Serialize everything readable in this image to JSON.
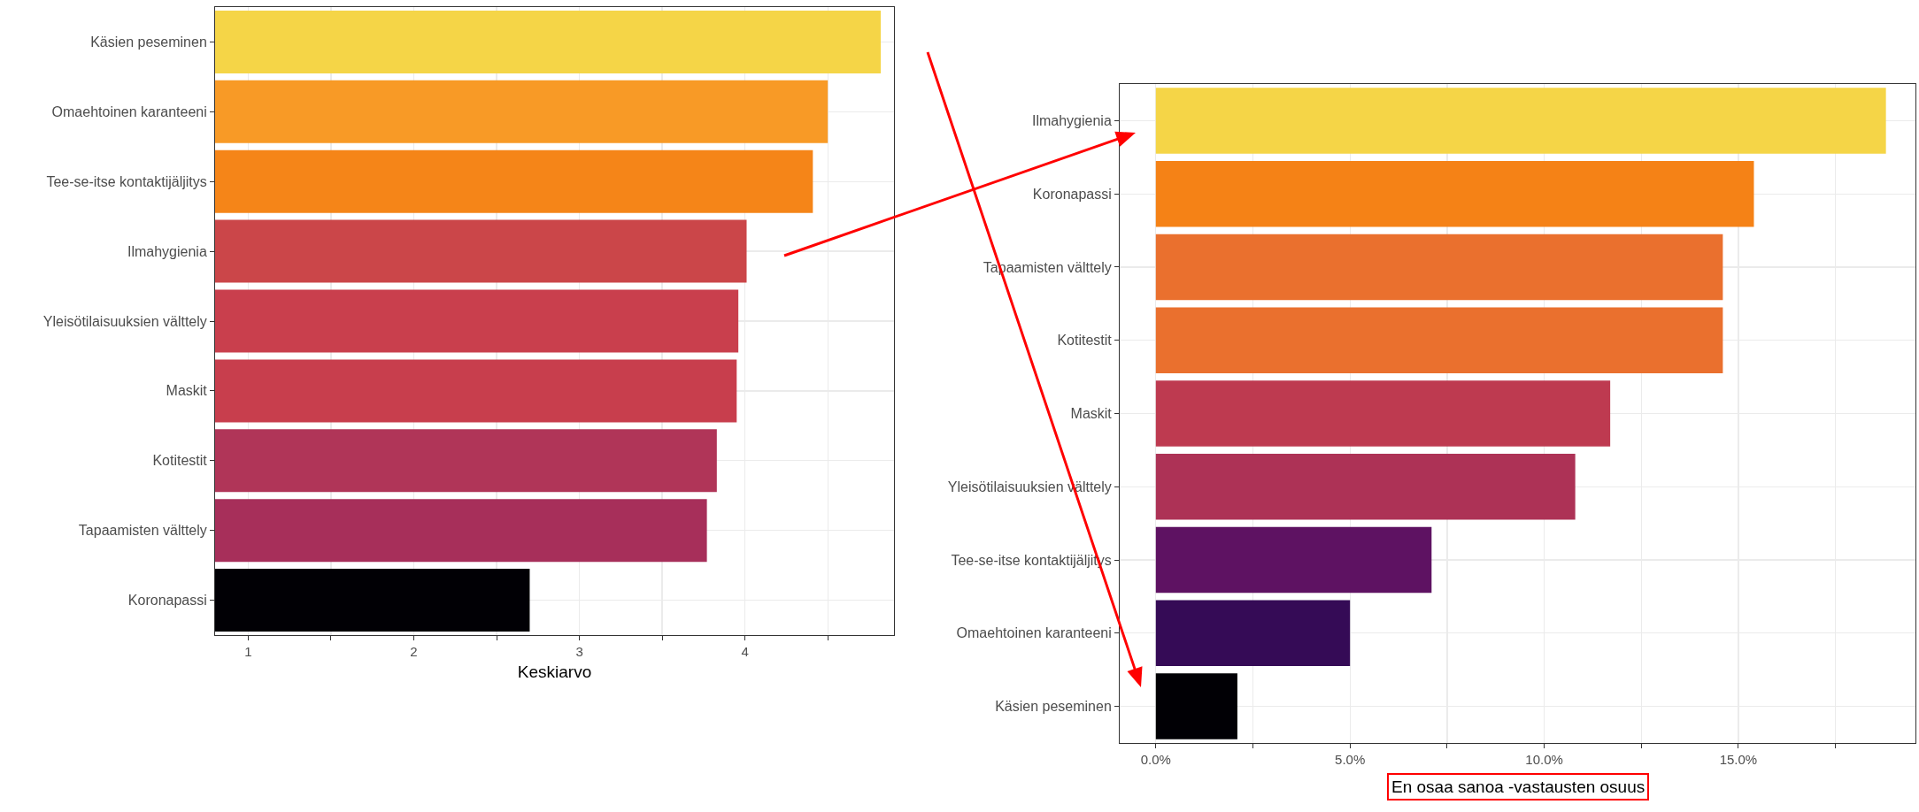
{
  "chart_data": [
    {
      "type": "bar",
      "orientation": "horizontal",
      "xlabel": "Keskiarvo",
      "categories": [
        "Käsien peseminen",
        "Omaehtoinen karanteeni",
        "Tee-se-itse kontaktijäljitys",
        "Ilmahygienia",
        "Yleisötilaisuuksien välttely",
        "Maskit",
        "Kotitestit",
        "Tapaamisten välttely",
        "Koronapassi"
      ],
      "values": [
        4.82,
        4.5,
        4.41,
        4.01,
        3.96,
        3.95,
        3.83,
        3.77,
        2.7
      ],
      "colors": [
        "#f5d547",
        "#f89a26",
        "#f58518",
        "#cb4649",
        "#c93f4d",
        "#c83e4d",
        "#b03558",
        "#a72f5a",
        "#010005"
      ],
      "xlim": [
        0.8,
        4.9
      ],
      "xticks": [
        1,
        {
          "value": 1.5,
          "label": null
        },
        2,
        {
          "value": 2.5,
          "label": null
        },
        3,
        {
          "value": 3.5,
          "label": null
        },
        4,
        {
          "value": 4.5,
          "label": null
        }
      ],
      "grid": true
    },
    {
      "type": "bar",
      "orientation": "horizontal",
      "xlabel": "En osaa sanoa -vastausten osuus",
      "categories": [
        "Ilmahygienia",
        "Koronapassi",
        "Tapaamisten välttely",
        "Kotitestit",
        "Maskit",
        "Yleisötilaisuuksien välttely",
        "Tee-se-itse kontaktijäljitys",
        "Omaehtoinen karanteeni",
        "Käsien peseminen"
      ],
      "values": [
        18.8,
        15.4,
        14.6,
        14.6,
        11.7,
        10.8,
        7.1,
        5.0,
        2.1
      ],
      "colors": [
        "#f5d547",
        "#f58216",
        "#ea702e",
        "#ea702e",
        "#be3a50",
        "#ad3256",
        "#5e1262",
        "#350b56",
        "#010005"
      ],
      "xlim": [
        -0.93,
        19.56
      ],
      "xticks": [
        {
          "value": 0,
          "label": "0.0%"
        },
        {
          "value": 2.5,
          "label": null
        },
        {
          "value": 5,
          "label": "5.0%"
        },
        {
          "value": 7.5,
          "label": null
        },
        {
          "value": 10,
          "label": "10.0%"
        },
        {
          "value": 12.5,
          "label": null
        },
        {
          "value": 15,
          "label": "15.0%"
        },
        {
          "value": 17.5,
          "label": null
        }
      ],
      "grid": true
    }
  ]
}
